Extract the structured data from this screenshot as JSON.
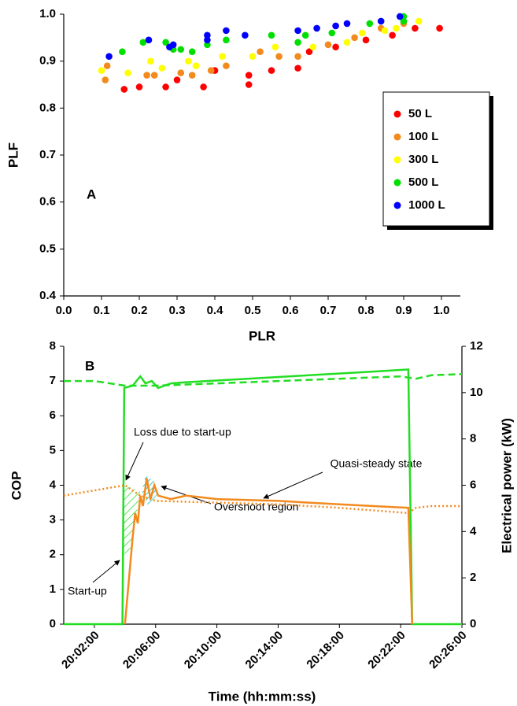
{
  "chart_data": [
    {
      "type": "scatter",
      "panel_label": "A",
      "xlabel": "PLR",
      "ylabel": "PLF",
      "xlim": [
        0,
        1.05
      ],
      "ylim": [
        0.4,
        1.0
      ],
      "xticks": [
        {
          "value": 0,
          "label": "0.0"
        },
        0.1,
        0.2,
        0.3,
        0.4,
        0.5,
        0.6,
        0.7,
        0.8,
        0.9,
        {
          "value": 1,
          "label": "1.0"
        }
      ],
      "yticks": [
        0.4,
        0.5,
        0.6,
        0.7,
        0.8,
        0.9,
        {
          "value": 1,
          "label": "1.0"
        }
      ],
      "legend": "lower right",
      "series": [
        {
          "name": "50 L",
          "color": "#ff0000",
          "x": [
            0.16,
            0.2,
            0.27,
            0.3,
            0.37,
            0.4,
            0.49,
            0.49,
            0.55,
            0.62,
            0.65,
            0.72,
            0.8,
            0.87,
            0.93,
            0.995
          ],
          "values": [
            0.84,
            0.845,
            0.845,
            0.86,
            0.845,
            0.88,
            0.85,
            0.87,
            0.88,
            0.885,
            0.92,
            0.93,
            0.945,
            0.955,
            0.97,
            0.97
          ]
        },
        {
          "name": "100 L",
          "color": "#f28a1e",
          "x": [
            0.11,
            0.115,
            0.22,
            0.24,
            0.31,
            0.34,
            0.39,
            0.43,
            0.52,
            0.57,
            0.62,
            0.7,
            0.77,
            0.84,
            0.9
          ],
          "values": [
            0.86,
            0.89,
            0.87,
            0.87,
            0.875,
            0.87,
            0.88,
            0.89,
            0.92,
            0.91,
            0.91,
            0.935,
            0.95,
            0.97,
            0.98
          ]
        },
        {
          "name": "300 L",
          "color": "#ffff00",
          "x": [
            0.1,
            0.17,
            0.23,
            0.26,
            0.33,
            0.35,
            0.42,
            0.5,
            0.56,
            0.66,
            0.75,
            0.79,
            0.85,
            0.88,
            0.94
          ],
          "values": [
            0.88,
            0.875,
            0.9,
            0.885,
            0.9,
            0.89,
            0.91,
            0.91,
            0.93,
            0.93,
            0.94,
            0.96,
            0.965,
            0.97,
            0.985
          ]
        },
        {
          "name": "500 L",
          "color": "#00e000",
          "x": [
            0.155,
            0.21,
            0.27,
            0.29,
            0.31,
            0.34,
            0.38,
            0.43,
            0.55,
            0.62,
            0.64,
            0.71,
            0.81,
            0.9,
            0.9
          ],
          "values": [
            0.92,
            0.94,
            0.94,
            0.925,
            0.925,
            0.92,
            0.935,
            0.945,
            0.955,
            0.94,
            0.955,
            0.96,
            0.98,
            0.995,
            0.985
          ]
        },
        {
          "name": "1000 L",
          "color": "#0000ff",
          "x": [
            0.12,
            0.225,
            0.28,
            0.29,
            0.38,
            0.38,
            0.43,
            0.48,
            0.62,
            0.67,
            0.72,
            0.75,
            0.84,
            0.89
          ],
          "values": [
            0.91,
            0.945,
            0.93,
            0.935,
            0.945,
            0.955,
            0.965,
            0.955,
            0.965,
            0.97,
            0.975,
            0.98,
            0.985,
            0.995
          ]
        }
      ]
    },
    {
      "type": "line",
      "panel_label": "B",
      "xlabel": "Time (hh:mm:ss)",
      "ylabel": "COP",
      "y2label": "Electrical power (kW)",
      "xlim": [
        "20:00:00",
        "20:26:00"
      ],
      "xticks": [
        "20:02:00",
        "20:06:00",
        "20:10:00",
        "20:14:00",
        "20:18:00",
        "20:22:00",
        "20:26:00"
      ],
      "ylim": [
        0,
        8
      ],
      "yticks": [
        0,
        1,
        2,
        3,
        4,
        5,
        6,
        7,
        8
      ],
      "y2lim": [
        0,
        12
      ],
      "y2ticks": [
        0,
        2,
        4,
        6,
        8,
        10,
        12
      ],
      "annotations": [
        "Loss due to start-up",
        "Quasi-steady state",
        "Overshoot region",
        "Start-up"
      ],
      "series": [
        {
          "color": "#22dd22",
          "axis": "y2",
          "dash": "solid",
          "x": [
            "20:00:00",
            "20:03:50",
            "20:03:57",
            "20:04:30",
            "20:05:00",
            "20:05:20",
            "20:05:45",
            "20:06:10",
            "20:07:00",
            "20:08:00",
            "20:12:00",
            "20:16:00",
            "20:20:00",
            "20:22:30",
            "20:22:45",
            "20:26:00"
          ],
          "values": [
            0,
            0,
            10.2,
            10.3,
            10.7,
            10.4,
            10.5,
            10.2,
            10.4,
            10.45,
            10.6,
            10.75,
            10.9,
            11.0,
            0,
            0
          ]
        },
        {
          "color": "#22dd22",
          "axis": "y2",
          "dash": "dashed",
          "x": [
            "20:00:00",
            "20:02:00",
            "20:04:00",
            "20:06:00",
            "20:10:00",
            "20:14:00",
            "20:18:00",
            "20:22:00",
            "20:23:00",
            "20:24:00",
            "20:26:00"
          ],
          "values": [
            10.5,
            10.5,
            10.3,
            10.3,
            10.4,
            10.5,
            10.6,
            10.7,
            10.6,
            10.75,
            10.8
          ]
        },
        {
          "color": "#f28a1e",
          "axis": "y",
          "dash": "solid",
          "x": [
            "20:04:00",
            "20:04:30",
            "20:04:40",
            "20:04:50",
            "20:05:00",
            "20:05:10",
            "20:05:25",
            "20:05:40",
            "20:05:55",
            "20:06:10",
            "20:07:00",
            "20:08:00",
            "20:10:00",
            "20:14:00",
            "20:18:00",
            "20:22:30",
            "20:22:45"
          ],
          "values": [
            0,
            2.5,
            3.2,
            2.9,
            3.7,
            3.4,
            4.2,
            3.6,
            4.0,
            3.7,
            3.6,
            3.7,
            3.6,
            3.55,
            3.45,
            3.35,
            0
          ]
        },
        {
          "color": "#f28a1e",
          "axis": "y",
          "dash": "dotted",
          "x": [
            "20:00:00",
            "20:02:00",
            "20:04:00",
            "20:05:00",
            "20:06:00",
            "20:10:00",
            "20:14:00",
            "20:18:00",
            "20:22:30",
            "20:23:00",
            "20:24:00",
            "20:26:00"
          ],
          "values": [
            3.7,
            3.85,
            4.0,
            3.7,
            3.55,
            3.5,
            3.45,
            3.35,
            3.2,
            3.35,
            3.4,
            3.4
          ]
        }
      ]
    }
  ]
}
